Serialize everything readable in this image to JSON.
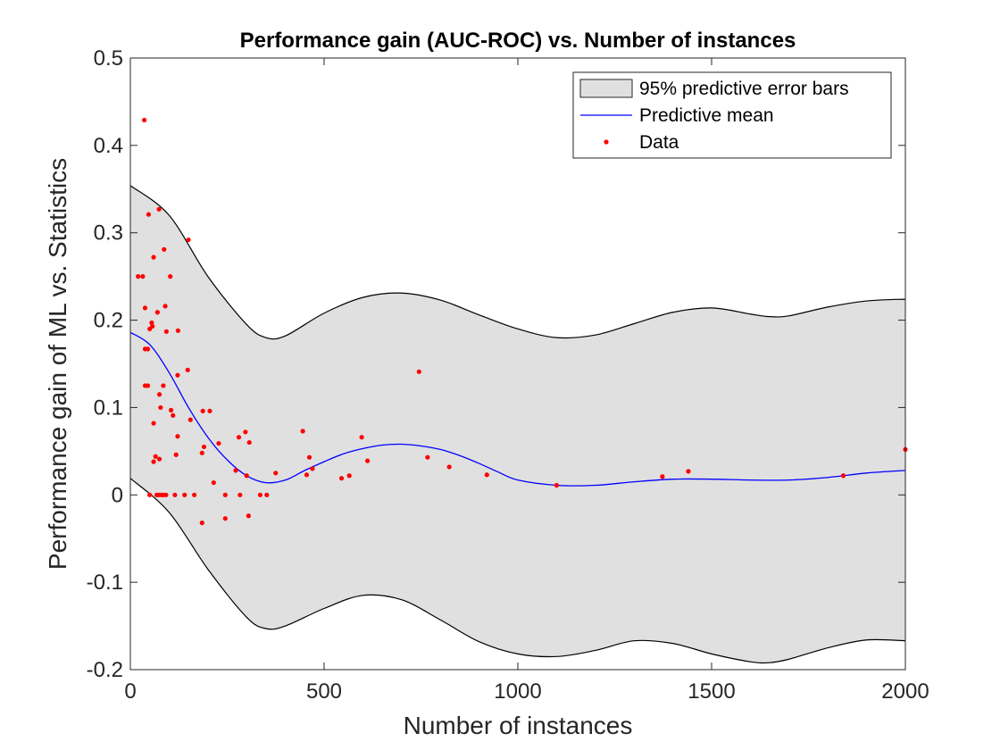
{
  "chart_data": {
    "type": "scatter",
    "title": "Performance gain (AUC-ROC) vs. Number of instances",
    "xlabel": "Number of instances",
    "ylabel": "Performance gain of ML vs. Statistics",
    "xlim": [
      0,
      2000
    ],
    "ylim": [
      -0.2,
      0.5
    ],
    "xticks": [
      0,
      500,
      1000,
      1500,
      2000
    ],
    "xtick_labels": [
      "0",
      "500",
      "1000",
      "1500",
      "2000"
    ],
    "yticks": [
      -0.2,
      -0.1,
      0,
      0.1,
      0.2,
      0.3,
      0.4,
      0.5
    ],
    "ytick_labels": [
      "-0.2",
      "-0.1",
      "0",
      "0.1",
      "0.2",
      "0.3",
      "0.4",
      "0.5"
    ],
    "grid": false,
    "legend_position": "top-right",
    "legend": [
      {
        "label": "95% predictive error bars",
        "kind": "patch",
        "color": "#e0e0e0"
      },
      {
        "label": "Predictive mean",
        "kind": "line",
        "color": "#0000ff"
      },
      {
        "label": "Data",
        "kind": "marker",
        "color": "#ff0000"
      }
    ],
    "band": {
      "name": "95% predictive error bars",
      "color": "#e0e0e0",
      "edge_color": "#000000",
      "x": [
        0,
        100,
        200,
        300,
        350,
        400,
        500,
        600,
        700,
        800,
        900,
        1000,
        1100,
        1200,
        1300,
        1400,
        1500,
        1600,
        1650,
        1700,
        1800,
        1900,
        2000
      ],
      "upper": [
        0.354,
        0.32,
        0.25,
        0.195,
        0.18,
        0.182,
        0.208,
        0.226,
        0.231,
        0.223,
        0.206,
        0.19,
        0.18,
        0.183,
        0.196,
        0.209,
        0.214,
        0.207,
        0.204,
        0.205,
        0.215,
        0.222,
        0.224
      ],
      "lower": [
        0.019,
        -0.02,
        -0.085,
        -0.14,
        -0.153,
        -0.15,
        -0.13,
        -0.115,
        -0.12,
        -0.143,
        -0.168,
        -0.182,
        -0.185,
        -0.178,
        -0.167,
        -0.17,
        -0.182,
        -0.191,
        -0.192,
        -0.188,
        -0.175,
        -0.166,
        -0.167
      ]
    },
    "series": [
      {
        "name": "Predictive mean",
        "type": "line",
        "color": "#0000ff",
        "x": [
          0,
          50,
          100,
          150,
          200,
          250,
          300,
          350,
          400,
          450,
          500,
          550,
          600,
          650,
          700,
          750,
          800,
          850,
          900,
          950,
          1000,
          1100,
          1200,
          1300,
          1400,
          1500,
          1600,
          1700,
          1800,
          1900,
          2000
        ],
        "y": [
          0.186,
          0.172,
          0.14,
          0.1,
          0.066,
          0.04,
          0.022,
          0.014,
          0.017,
          0.028,
          0.038,
          0.047,
          0.053,
          0.057,
          0.058,
          0.056,
          0.052,
          0.045,
          0.036,
          0.026,
          0.017,
          0.011,
          0.011,
          0.015,
          0.018,
          0.018,
          0.017,
          0.017,
          0.02,
          0.025,
          0.028
        ]
      },
      {
        "name": "Data",
        "type": "scatter",
        "color": "#ff0000",
        "points": [
          [
            36,
            0.429
          ],
          [
            47,
            0.321
          ],
          [
            74,
            0.327
          ],
          [
            150,
            0.292
          ],
          [
            87,
            0.281
          ],
          [
            60,
            0.272
          ],
          [
            20,
            0.25
          ],
          [
            32,
            0.25
          ],
          [
            103,
            0.25
          ],
          [
            38,
            0.214
          ],
          [
            90,
            0.216
          ],
          [
            70,
            0.209
          ],
          [
            55,
            0.197
          ],
          [
            57,
            0.193
          ],
          [
            50,
            0.19
          ],
          [
            93,
            0.187
          ],
          [
            123,
            0.188
          ],
          [
            38,
            0.167
          ],
          [
            45,
            0.167
          ],
          [
            148,
            0.143
          ],
          [
            122,
            0.137
          ],
          [
            745,
            0.141
          ],
          [
            38,
            0.125
          ],
          [
            45,
            0.125
          ],
          [
            85,
            0.125
          ],
          [
            75,
            0.115
          ],
          [
            78,
            0.1
          ],
          [
            105,
            0.097
          ],
          [
            187,
            0.096
          ],
          [
            205,
            0.096
          ],
          [
            110,
            0.091
          ],
          [
            155,
            0.086
          ],
          [
            60,
            0.082
          ],
          [
            445,
            0.073
          ],
          [
            297,
            0.072
          ],
          [
            280,
            0.066
          ],
          [
            122,
            0.067
          ],
          [
            597,
            0.066
          ],
          [
            307,
            0.06
          ],
          [
            228,
            0.059
          ],
          [
            190,
            0.055
          ],
          [
            2000,
            0.052
          ],
          [
            185,
            0.048
          ],
          [
            118,
            0.046
          ],
          [
            462,
            0.043
          ],
          [
            65,
            0.044
          ],
          [
            75,
            0.041
          ],
          [
            767,
            0.043
          ],
          [
            612,
            0.039
          ],
          [
            60,
            0.038
          ],
          [
            823,
            0.032
          ],
          [
            470,
            0.03
          ],
          [
            272,
            0.028
          ],
          [
            375,
            0.025
          ],
          [
            1440,
            0.027
          ],
          [
            300,
            0.022
          ],
          [
            455,
            0.023
          ],
          [
            920,
            0.023
          ],
          [
            565,
            0.022
          ],
          [
            545,
            0.019
          ],
          [
            1840,
            0.022
          ],
          [
            1373,
            0.021
          ],
          [
            215,
            0.014
          ],
          [
            1100,
            0.011
          ],
          [
            50,
            0.0
          ],
          [
            68,
            0.0
          ],
          [
            73,
            0.0
          ],
          [
            80,
            0.0
          ],
          [
            85,
            0.0
          ],
          [
            92,
            0.0
          ],
          [
            115,
            0.0
          ],
          [
            140,
            0.0
          ],
          [
            165,
            0.0
          ],
          [
            245,
            0.0
          ],
          [
            283,
            0.0
          ],
          [
            335,
            0.0
          ],
          [
            352,
            0.0
          ],
          [
            305,
            -0.024
          ],
          [
            245,
            -0.027
          ],
          [
            185,
            -0.032
          ]
        ]
      }
    ]
  }
}
